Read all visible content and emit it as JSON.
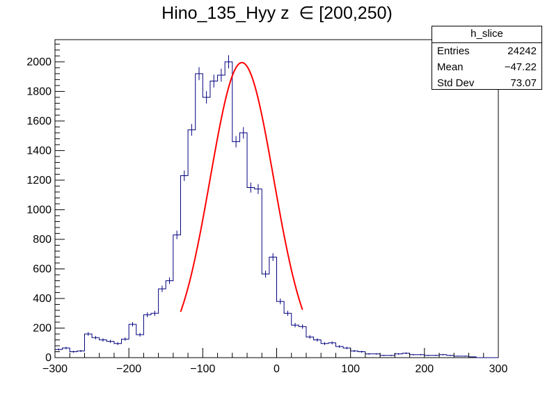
{
  "title": "Hino_135_Hyy z  ∈ [200,250)",
  "stats": {
    "name": "h_slice",
    "rows": [
      {
        "label": "Entries",
        "value": "24242"
      },
      {
        "label": "Mean",
        "value": "−47.22"
      },
      {
        "label": "Std Dev",
        "value": "73.07"
      }
    ]
  },
  "colors": {
    "histogram": "#000080",
    "fit": "#ff0000",
    "axis": "#000000"
  },
  "chart_data": {
    "type": "histogram",
    "title": "Hino_135_Hyy z  ∈ [200,250)",
    "xlim": [
      -300,
      300
    ],
    "ylim": [
      0,
      2150
    ],
    "x_ticks": [
      -300,
      -200,
      -100,
      0,
      100,
      200,
      300
    ],
    "x_tick_labels": [
      "−300",
      "−200",
      "−100",
      "0",
      "100",
      "200",
      "300"
    ],
    "y_ticks": [
      0,
      200,
      400,
      600,
      800,
      1000,
      1200,
      1400,
      1600,
      1800,
      2000
    ],
    "y_tick_labels": [
      "0",
      "200",
      "400",
      "600",
      "800",
      "1000",
      "1200",
      "1400",
      "1600",
      "1800",
      "2000"
    ],
    "bin_width": 10,
    "bin_low_edges": [
      -300,
      -290,
      -280,
      -270,
      -260,
      -250,
      -240,
      -230,
      -220,
      -210,
      -200,
      -190,
      -180,
      -170,
      -160,
      -150,
      -140,
      -130,
      -120,
      -110,
      -100,
      -90,
      -80,
      -70,
      -60,
      -50,
      -40,
      -30,
      -20,
      -10,
      0,
      10,
      20,
      30,
      40,
      50,
      60,
      70,
      80,
      90,
      100,
      110,
      120,
      130,
      140,
      150,
      160,
      170,
      180,
      190,
      200,
      210,
      220,
      230,
      240,
      250,
      260,
      270,
      280,
      290
    ],
    "counts": [
      55,
      65,
      40,
      45,
      160,
      135,
      120,
      110,
      95,
      125,
      225,
      155,
      290,
      300,
      465,
      520,
      830,
      1230,
      1540,
      1920,
      1760,
      1870,
      1910,
      2000,
      1460,
      1520,
      1150,
      1140,
      565,
      680,
      380,
      300,
      220,
      210,
      140,
      120,
      95,
      100,
      75,
      65,
      45,
      40,
      25,
      25,
      15,
      15,
      25,
      30,
      20,
      20,
      15,
      15,
      20,
      15,
      10,
      10,
      5,
      0,
      0,
      0
    ],
    "fit": {
      "function": "gaus",
      "constant": 1995,
      "mean": -47,
      "sigma": 43,
      "range": [
        -130,
        35
      ]
    }
  }
}
